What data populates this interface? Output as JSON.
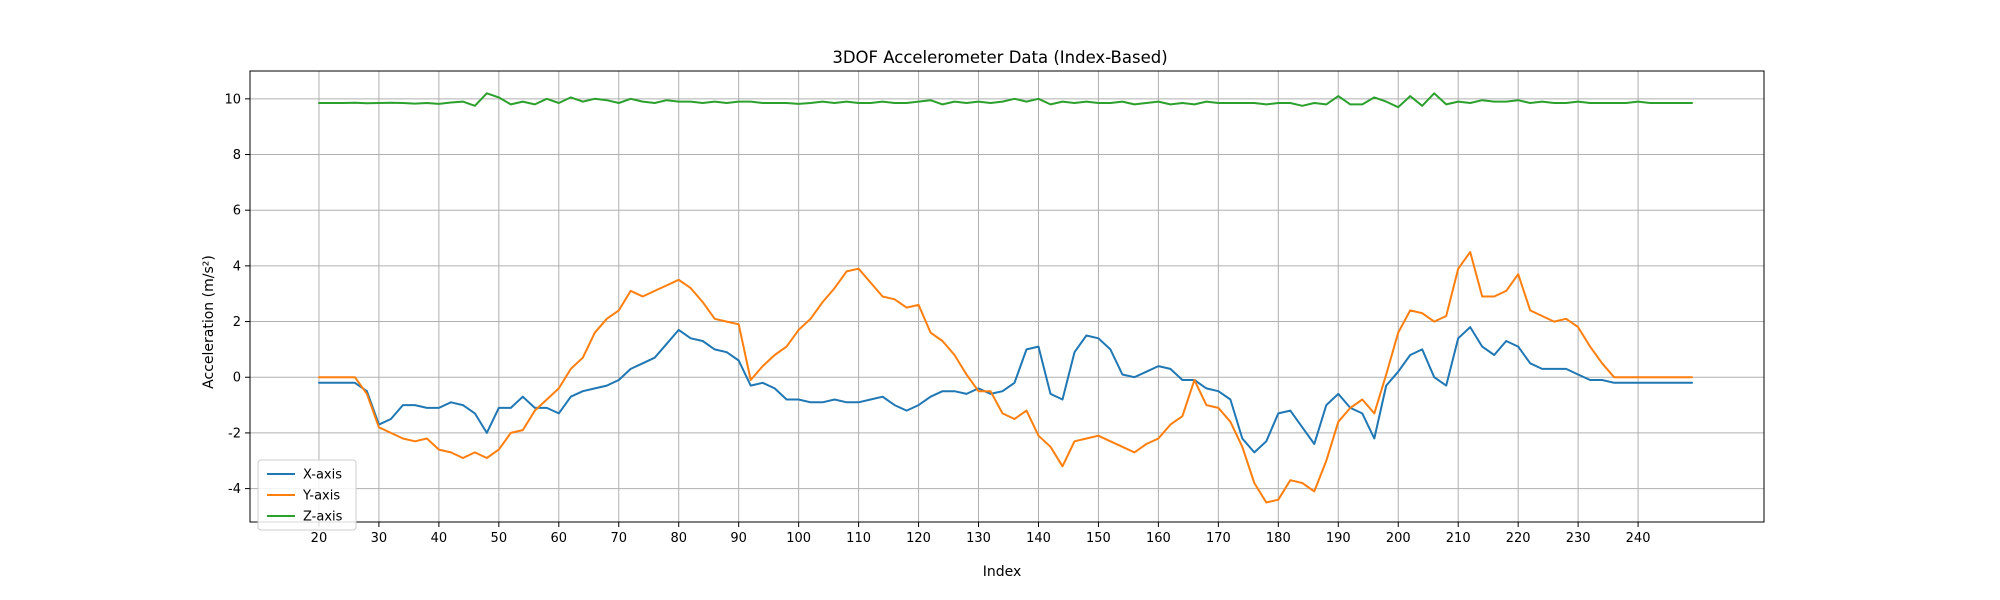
{
  "chart_data": {
    "type": "line",
    "title": "3DOF Accelerometer Data (Index-Based)",
    "xlabel": "Index",
    "ylabel": "Acceleration (m/s²)",
    "xlim": [
      8.5,
      261
    ],
    "ylim": [
      -5.2,
      11.0
    ],
    "xticks": [
      20,
      30,
      40,
      50,
      60,
      70,
      80,
      90,
      100,
      110,
      120,
      130,
      140,
      150,
      160,
      170,
      180,
      190,
      200,
      210,
      220,
      230,
      240
    ],
    "yticks": [
      -4,
      -2,
      0,
      2,
      4,
      6,
      8,
      10
    ],
    "grid": true,
    "legend_position": "lower-left",
    "x": [
      20,
      22,
      24,
      26,
      28,
      30,
      32,
      34,
      36,
      38,
      40,
      42,
      44,
      46,
      48,
      50,
      52,
      54,
      56,
      58,
      60,
      62,
      64,
      66,
      68,
      70,
      72,
      74,
      76,
      78,
      80,
      82,
      84,
      86,
      88,
      90,
      92,
      94,
      96,
      98,
      100,
      102,
      104,
      106,
      108,
      110,
      112,
      114,
      116,
      118,
      120,
      122,
      124,
      126,
      128,
      130,
      132,
      134,
      136,
      138,
      140,
      142,
      144,
      146,
      148,
      150,
      152,
      154,
      156,
      158,
      160,
      162,
      164,
      166,
      168,
      170,
      172,
      174,
      176,
      178,
      180,
      182,
      184,
      186,
      188,
      190,
      192,
      194,
      196,
      198,
      200,
      202,
      204,
      206,
      208,
      210,
      212,
      214,
      216,
      218,
      220,
      222,
      224,
      226,
      228,
      230,
      232,
      234,
      236,
      238,
      240,
      242,
      244,
      246,
      248,
      249
    ],
    "series": [
      {
        "name": "X-axis",
        "color": "#1f77b4",
        "values": [
          -0.2,
          -0.2,
          -0.2,
          -0.2,
          -0.5,
          -1.7,
          -1.5,
          -1.0,
          -1.0,
          -1.1,
          -1.1,
          -0.9,
          -1.0,
          -1.3,
          -2.0,
          -1.1,
          -1.1,
          -0.7,
          -1.1,
          -1.1,
          -1.3,
          -0.7,
          -0.5,
          -0.4,
          -0.3,
          -0.1,
          0.3,
          0.5,
          0.7,
          1.2,
          1.7,
          1.4,
          1.3,
          1.0,
          0.9,
          0.6,
          -0.3,
          -0.2,
          -0.4,
          -0.8,
          -0.8,
          -0.9,
          -0.9,
          -0.8,
          -0.9,
          -0.9,
          -0.8,
          -0.7,
          -1.0,
          -1.2,
          -1.0,
          -0.7,
          -0.5,
          -0.5,
          -0.6,
          -0.4,
          -0.6,
          -0.5,
          -0.2,
          1.0,
          1.1,
          -0.6,
          -0.8,
          0.9,
          1.5,
          1.4,
          1.0,
          0.1,
          0.0,
          0.2,
          0.4,
          0.3,
          -0.1,
          -0.1,
          -0.4,
          -0.5,
          -0.8,
          -2.2,
          -2.7,
          -2.3,
          -1.3,
          -1.2,
          -1.8,
          -2.4,
          -1.0,
          -0.6,
          -1.1,
          -1.3,
          -2.2,
          -0.3,
          0.2,
          0.8,
          1.0,
          0.0,
          -0.3,
          1.4,
          1.8,
          1.1,
          0.8,
          1.3,
          1.1,
          0.5,
          0.3,
          0.3,
          0.3,
          0.1,
          -0.1,
          -0.1,
          -0.2,
          -0.2,
          -0.2,
          -0.2,
          -0.2,
          -0.2,
          -0.2,
          -0.2
        ]
      },
      {
        "name": "Y-axis",
        "color": "#ff7f0e",
        "values": [
          0.0,
          0.0,
          0.0,
          0.0,
          -0.6,
          -1.8,
          -2.0,
          -2.2,
          -2.3,
          -2.2,
          -2.6,
          -2.7,
          -2.9,
          -2.7,
          -2.9,
          -2.6,
          -2.0,
          -1.9,
          -1.2,
          -0.8,
          -0.4,
          0.3,
          0.7,
          1.6,
          2.1,
          2.4,
          3.1,
          2.9,
          3.1,
          3.3,
          3.5,
          3.2,
          2.7,
          2.1,
          2.0,
          1.9,
          -0.1,
          0.4,
          0.8,
          1.1,
          1.7,
          2.1,
          2.7,
          3.2,
          3.8,
          3.9,
          3.4,
          2.9,
          2.8,
          2.5,
          2.6,
          1.6,
          1.3,
          0.8,
          0.1,
          -0.5,
          -0.5,
          -1.3,
          -1.5,
          -1.2,
          -2.1,
          -2.5,
          -3.2,
          -2.3,
          -2.2,
          -2.1,
          -2.3,
          -2.5,
          -2.7,
          -2.4,
          -2.2,
          -1.7,
          -1.4,
          -0.1,
          -1.0,
          -1.1,
          -1.6,
          -2.5,
          -3.8,
          -4.5,
          -4.4,
          -3.7,
          -3.8,
          -4.1,
          -3.0,
          -1.6,
          -1.1,
          -0.8,
          -1.3,
          0.1,
          1.6,
          2.4,
          2.3,
          2.0,
          2.2,
          3.9,
          4.5,
          2.9,
          2.9,
          3.1,
          3.7,
          2.4,
          2.2,
          2.0,
          2.1,
          1.8,
          1.1,
          0.5,
          0.0,
          0.0,
          0.0,
          0.0,
          0.0,
          0.0,
          0.0,
          0.0
        ]
      },
      {
        "name": "Z-axis",
        "color": "#2ca02c",
        "values": [
          9.85,
          9.85,
          9.85,
          9.86,
          9.84,
          9.85,
          9.86,
          9.85,
          9.83,
          9.85,
          9.82,
          9.87,
          9.9,
          9.75,
          10.2,
          10.05,
          9.8,
          9.9,
          9.8,
          10.0,
          9.85,
          10.05,
          9.9,
          10.0,
          9.95,
          9.85,
          10.0,
          9.9,
          9.85,
          9.95,
          9.9,
          9.9,
          9.85,
          9.9,
          9.85,
          9.9,
          9.9,
          9.85,
          9.85,
          9.85,
          9.82,
          9.85,
          9.9,
          9.85,
          9.9,
          9.85,
          9.85,
          9.9,
          9.85,
          9.85,
          9.9,
          9.95,
          9.8,
          9.9,
          9.85,
          9.9,
          9.85,
          9.9,
          10.0,
          9.9,
          10.0,
          9.8,
          9.9,
          9.85,
          9.9,
          9.85,
          9.85,
          9.9,
          9.8,
          9.85,
          9.9,
          9.8,
          9.85,
          9.8,
          9.9,
          9.85,
          9.85,
          9.85,
          9.85,
          9.8,
          9.85,
          9.85,
          9.75,
          9.85,
          9.8,
          10.1,
          9.8,
          9.8,
          10.05,
          9.9,
          9.7,
          10.1,
          9.75,
          10.2,
          9.8,
          9.9,
          9.85,
          9.95,
          9.9,
          9.9,
          9.95,
          9.85,
          9.9,
          9.85,
          9.85,
          9.9,
          9.85,
          9.85,
          9.85,
          9.85,
          9.9,
          9.85,
          9.85,
          9.85,
          9.85,
          9.85
        ]
      }
    ]
  }
}
